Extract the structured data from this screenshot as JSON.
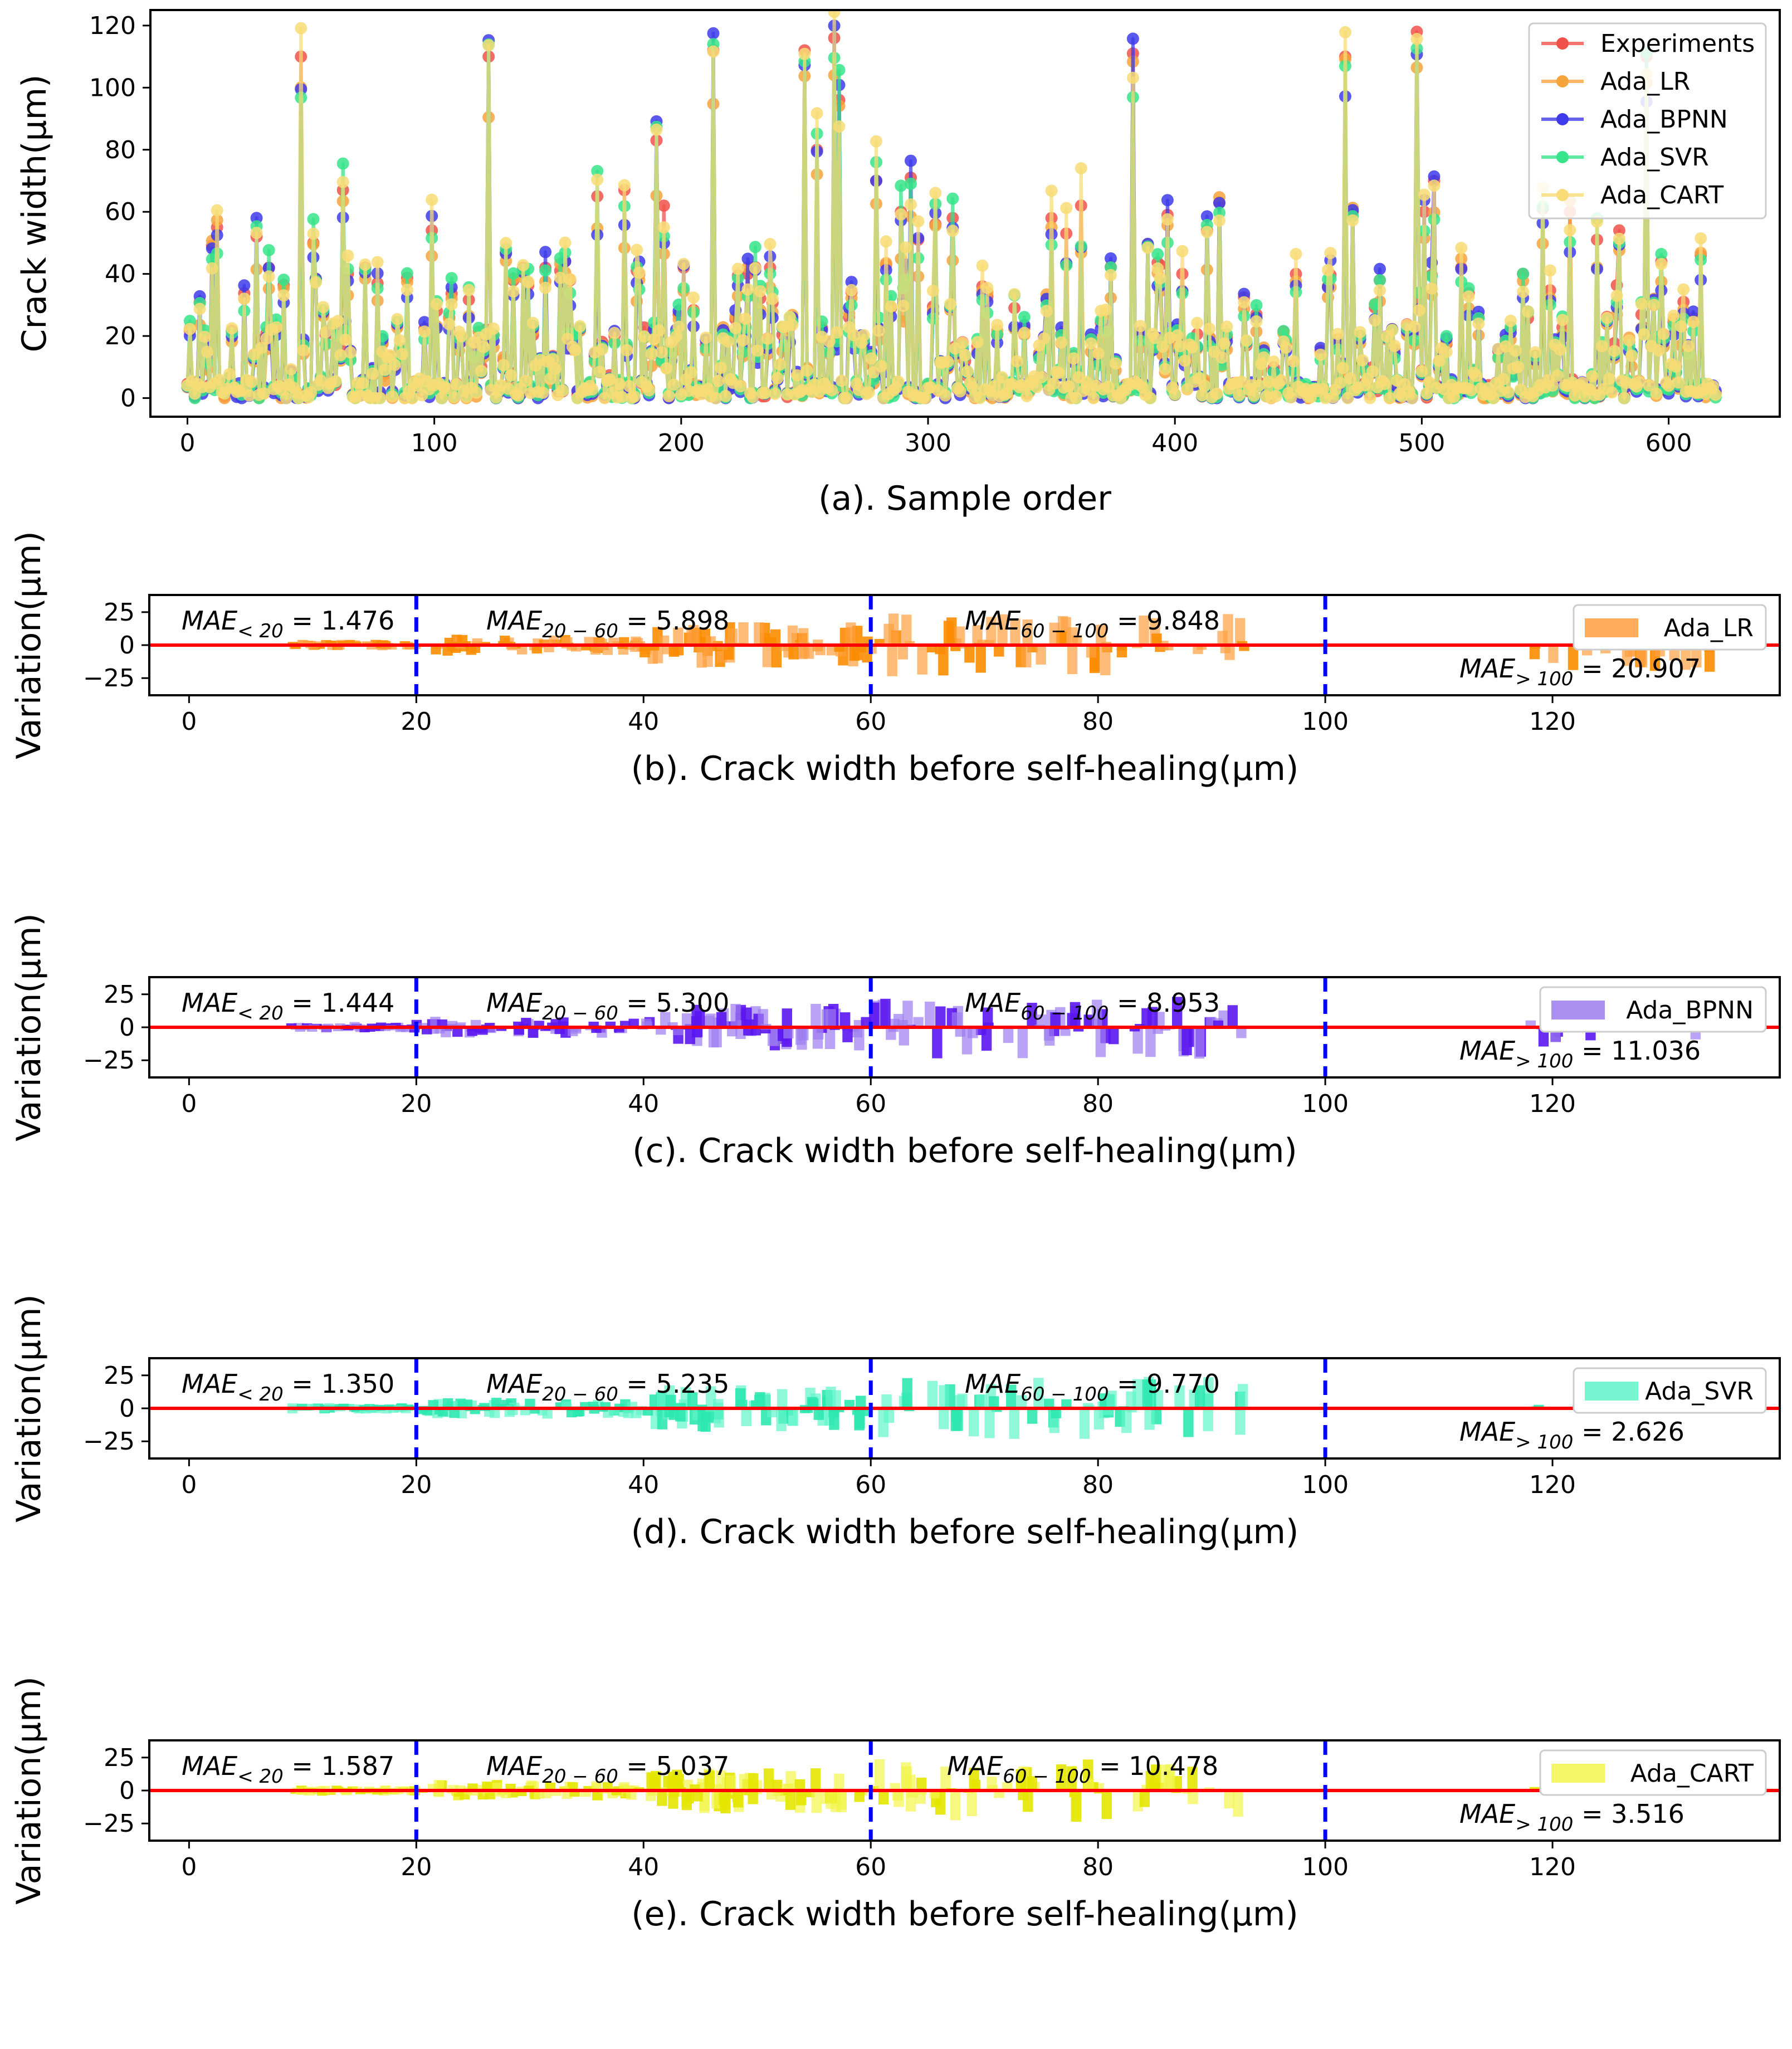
{
  "chart_data": [
    {
      "type": "line",
      "panel": "a",
      "xlabel": "(a). Sample order",
      "ylabel": "Crack width(μm)",
      "xlim": [
        -15,
        645
      ],
      "ylim": [
        -6,
        125
      ],
      "xticks": [
        0,
        100,
        200,
        300,
        400,
        500,
        600
      ],
      "yticks": [
        0,
        20,
        40,
        60,
        80,
        100,
        120
      ],
      "n_samples": 620,
      "legend_position": "top-right",
      "series": [
        {
          "name": "Experiments",
          "color": "#f0524a"
        },
        {
          "name": "Ada_LR",
          "color": "#f7a33c"
        },
        {
          "name": "Ada_BPNN",
          "color": "#3d3bea"
        },
        {
          "name": "Ada_SVR",
          "color": "#36e48a"
        },
        {
          "name": "Ada_CART",
          "color": "#f8dc75"
        }
      ],
      "peaks": [
        {
          "x": 10,
          "y": 49
        },
        {
          "x": 12,
          "y": 55
        },
        {
          "x": 28,
          "y": 52
        },
        {
          "x": 33,
          "y": 42
        },
        {
          "x": 46,
          "y": 110
        },
        {
          "x": 51,
          "y": 50
        },
        {
          "x": 55,
          "y": 27
        },
        {
          "x": 63,
          "y": 67
        },
        {
          "x": 72,
          "y": 42
        },
        {
          "x": 77,
          "y": 37
        },
        {
          "x": 85,
          "y": 23
        },
        {
          "x": 99,
          "y": 54
        },
        {
          "x": 106,
          "y": 26
        },
        {
          "x": 122,
          "y": 110
        },
        {
          "x": 129,
          "y": 47
        },
        {
          "x": 136,
          "y": 42
        },
        {
          "x": 145,
          "y": 42
        },
        {
          "x": 153,
          "y": 44
        },
        {
          "x": 166,
          "y": 65
        },
        {
          "x": 177,
          "y": 67
        },
        {
          "x": 183,
          "y": 40
        },
        {
          "x": 190,
          "y": 83
        },
        {
          "x": 193,
          "y": 62
        },
        {
          "x": 201,
          "y": 42
        },
        {
          "x": 213,
          "y": 112
        },
        {
          "x": 219,
          "y": 20
        },
        {
          "x": 227,
          "y": 40
        },
        {
          "x": 236,
          "y": 42
        },
        {
          "x": 245,
          "y": 25
        },
        {
          "x": 250,
          "y": 112
        },
        {
          "x": 255,
          "y": 80
        },
        {
          "x": 262,
          "y": 116
        },
        {
          "x": 264,
          "y": 96
        },
        {
          "x": 268,
          "y": 26
        },
        {
          "x": 279,
          "y": 70
        },
        {
          "x": 283,
          "y": 43
        },
        {
          "x": 289,
          "y": 60
        },
        {
          "x": 293,
          "y": 71
        },
        {
          "x": 296,
          "y": 51
        },
        {
          "x": 303,
          "y": 56
        },
        {
          "x": 310,
          "y": 58
        },
        {
          "x": 322,
          "y": 36
        },
        {
          "x": 335,
          "y": 29
        },
        {
          "x": 350,
          "y": 58
        },
        {
          "x": 356,
          "y": 53
        },
        {
          "x": 362,
          "y": 62
        },
        {
          "x": 372,
          "y": 25
        },
        {
          "x": 383,
          "y": 111
        },
        {
          "x": 389,
          "y": 49
        },
        {
          "x": 397,
          "y": 59
        },
        {
          "x": 403,
          "y": 40
        },
        {
          "x": 413,
          "y": 54
        },
        {
          "x": 418,
          "y": 63
        },
        {
          "x": 433,
          "y": 27
        },
        {
          "x": 449,
          "y": 40
        },
        {
          "x": 462,
          "y": 36
        },
        {
          "x": 469,
          "y": 110
        },
        {
          "x": 472,
          "y": 60
        },
        {
          "x": 483,
          "y": 38
        },
        {
          "x": 498,
          "y": 118
        },
        {
          "x": 501,
          "y": 60
        },
        {
          "x": 505,
          "y": 70
        },
        {
          "x": 516,
          "y": 42
        },
        {
          "x": 523,
          "y": 26
        },
        {
          "x": 541,
          "y": 40
        },
        {
          "x": 549,
          "y": 61
        },
        {
          "x": 560,
          "y": 60
        },
        {
          "x": 571,
          "y": 51
        },
        {
          "x": 580,
          "y": 54
        },
        {
          "x": 591,
          "y": 110
        },
        {
          "x": 597,
          "y": 44
        },
        {
          "x": 606,
          "y": 31
        },
        {
          "x": 613,
          "y": 46
        }
      ]
    },
    {
      "type": "bar",
      "panel": "b",
      "xlabel": "(b). Crack width before self-healing(μm)",
      "ylabel": "Variation(μm)",
      "xlim": [
        -3.5,
        140
      ],
      "ylim": [
        -38,
        38
      ],
      "xticks": [
        0,
        20,
        40,
        60,
        80,
        100,
        120
      ],
      "yticks": [
        -25,
        0,
        25
      ],
      "legend": "Ada_LR",
      "color": "#ff9f3f",
      "dark_color": "#fb8c00",
      "dividers": [
        20,
        60,
        100
      ],
      "annotations": [
        {
          "label": "MAE<20 = 1.476",
          "sub": "< 20",
          "value": "1.476"
        },
        {
          "label": "MAE20-60 = 5.898",
          "sub": "20 − 60",
          "value": "5.898"
        },
        {
          "label": "MAE60-100 = 9.848",
          "sub": "60 − 100",
          "value": "9.848"
        },
        {
          "label": "MAE>100 = 20.907",
          "sub": "> 100",
          "value": "20.907"
        }
      ],
      "seed": 11
    },
    {
      "type": "bar",
      "panel": "c",
      "xlabel": "(c). Crack width before self-healing(μm)",
      "ylabel": "Variation(μm)",
      "xlim": [
        -3.5,
        140
      ],
      "ylim": [
        -38,
        38
      ],
      "xticks": [
        0,
        20,
        40,
        60,
        80,
        100,
        120
      ],
      "yticks": [
        -25,
        0,
        25
      ],
      "legend": "Ada_BPNN",
      "color": "#9c7cf0",
      "dark_color": "#5b16ef",
      "dividers": [
        20,
        60,
        100
      ],
      "annotations": [
        {
          "label": "MAE<20 = 1.444",
          "sub": "< 20",
          "value": "1.444"
        },
        {
          "label": "MAE20-60 = 5.300",
          "sub": "20 − 60",
          "value": "5.300"
        },
        {
          "label": "MAE60-100 = 8.953",
          "sub": "60 − 100",
          "value": "8.953"
        },
        {
          "label": "MAE>100 = 11.036",
          "sub": "> 100",
          "value": "11.036"
        }
      ],
      "seed": 23
    },
    {
      "type": "bar",
      "panel": "d",
      "xlabel": "(d). Crack width before self-healing(μm)",
      "ylabel": "Variation(μm)",
      "xlim": [
        -3.5,
        140
      ],
      "ylim": [
        -38,
        38
      ],
      "xticks": [
        0,
        20,
        40,
        60,
        80,
        100,
        120
      ],
      "yticks": [
        -25,
        0,
        25
      ],
      "legend": "Ada_SVR",
      "color": "#5ff5c9",
      "dark_color": "#2de8b0",
      "dividers": [
        20,
        60,
        100
      ],
      "annotations": [
        {
          "label": "MAE<20 = 1.350",
          "sub": "< 20",
          "value": "1.350"
        },
        {
          "label": "MAE20-60 = 5.235",
          "sub": "20 − 60",
          "value": "5.235"
        },
        {
          "label": "MAE60-100 = 9.770",
          "sub": "60 − 100",
          "value": "9.770"
        },
        {
          "label": "MAE>100 = 2.626",
          "sub": "> 100",
          "value": "2.626"
        }
      ],
      "seed": 37
    },
    {
      "type": "bar",
      "panel": "e",
      "xlabel": "(e). Crack width before self-healing(μm)",
      "ylabel": "Variation(μm)",
      "xlim": [
        -3.5,
        140
      ],
      "ylim": [
        -38,
        38
      ],
      "xticks": [
        0,
        20,
        40,
        60,
        80,
        100,
        120
      ],
      "yticks": [
        -25,
        0,
        25
      ],
      "legend": "Ada_CART",
      "color": "#f2f54a",
      "dark_color": "#e4e600",
      "dividers": [
        20,
        60,
        100
      ],
      "annotations": [
        {
          "label": "MAE<20 = 1.587",
          "sub": "< 20",
          "value": "1.587"
        },
        {
          "label": "MAE20-60 = 5.037",
          "sub": "20 − 60",
          "value": "5.037"
        },
        {
          "label": "MAE60-100 = 10.478",
          "sub": "60 − 100",
          "value": "10.478"
        },
        {
          "label": "MAE>100 = 3.516",
          "sub": "> 100",
          "value": "3.516"
        }
      ],
      "seed": 53
    }
  ]
}
